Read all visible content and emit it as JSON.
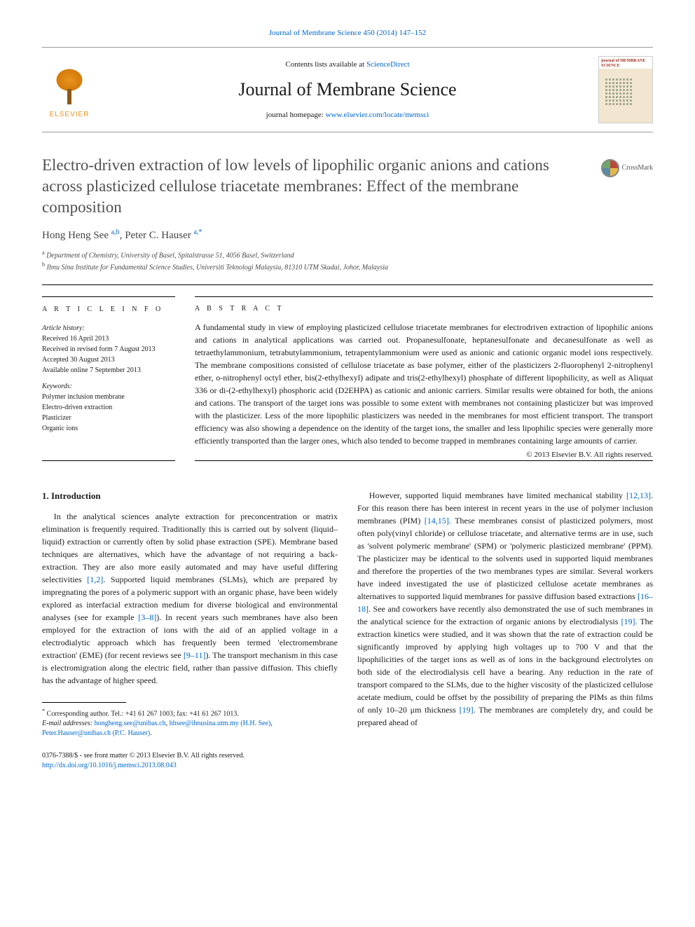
{
  "top_link": {
    "prefix": "",
    "text": "Journal of Membrane Science 450 (2014) 147–152"
  },
  "header": {
    "contents_prefix": "Contents lists available at ",
    "contents_link": "ScienceDirect",
    "journal_name": "Journal of Membrane Science",
    "homepage_prefix": "journal homepage: ",
    "homepage_link": "www.elsevier.com/locate/memsci",
    "elsevier": "ELSEVIER",
    "cover_title": "journal of MEMBRANE SCIENCE"
  },
  "crossmark_label": "CrossMark",
  "article": {
    "title": "Electro-driven extraction of low levels of lipophilic organic anions and cations across plasticized cellulose triacetate membranes: Effect of the membrane composition",
    "authors_html": "Hong Heng See",
    "author1_affils": "a,b",
    "author2": "Peter C. Hauser",
    "author2_affils": "a,",
    "corr_marker": "*",
    "affiliations": [
      "Department of Chemistry, University of Basel, Spitalstrasse 51, 4056 Basel, Switzerland",
      "Ibnu Sina Institute for Fundamental Science Studies, Universiti Teknologi Malaysia, 81310 UTM Skudai, Johor, Malaysia"
    ],
    "affil_labels": [
      "a",
      "b"
    ]
  },
  "info": {
    "heading": "a r t i c l e   i n f o",
    "history_label": "Article history:",
    "received": "Received 16 April 2013",
    "revised": "Received in revised form 7 August 2013",
    "accepted": "Accepted 30 August 2013",
    "online": "Available online 7 September 2013",
    "keywords_label": "Keywords:",
    "keywords": [
      "Polymer inclusion membrane",
      "Electro-driven extraction",
      "Plasticizer",
      "Organic ions"
    ]
  },
  "abstract": {
    "heading": "a b s t r a c t",
    "text": "A fundamental study in view of employing plasticized cellulose triacetate membranes for electrodriven extraction of lipophilic anions and cations in analytical applications was carried out. Propanesulfonate, heptanesulfonate and decanesulfonate as well as tetraethylammonium, tetrabutylammonium, tetrapentylammonium were used as anionic and cationic organic model ions respectively. The membrane compositions consisted of cellulose triacetate as base polymer, either of the plasticizers 2-fluorophenyl 2-nitrophenyl ether, o-nitrophenyl octyl ether, bis(2-ethylhexyl) adipate and tris(2-ethylhexyl) phosphate of different lipophilicity, as well as Aliquat 336 or di-(2-ethylhexyl) phosphoric acid (D2EHPA) as cationic and anionic carriers. Similar results were obtained for both, the anions and cations. The transport of the target ions was possible to some extent with membranes not containing plasticizer but was improved with the plasticizer. Less of the more lipophilic plasticizers was needed in the membranes for most efficient transport. The transport efficiency was also showing a dependence on the identity of the target ions, the smaller and less lipophilic species were generally more efficiently transported than the larger ones, which also tended to become trapped in membranes containing large amounts of carrier.",
    "copyright": "© 2013 Elsevier B.V. All rights reserved."
  },
  "sections": {
    "intro_heading": "1.  Introduction",
    "intro_p1": "In the analytical sciences analyte extraction for preconcentration or matrix elimination is frequently required. Traditionally this is carried out by solvent (liquid–liquid) extraction or currently often by solid phase extraction (SPE). Membrane based techniques are alternatives, which have the advantage of not requiring a back-extraction. They are also more easily automated and may have useful differing selectivities ",
    "cite1": "[1,2]",
    "intro_p1b": ". Supported liquid membranes (SLMs), which are prepared by impregnating the pores of a polymeric support with an organic phase, have been widely explored as interfacial extraction medium for diverse biological and environmental analyses (see for example ",
    "cite2": "[3–8]",
    "intro_p1c": "). In recent years such membranes have also been employed for the extraction of ions with the aid of an applied voltage in a electrodialytic approach which has frequently been termed 'electromembrane extraction' (EME) (for recent reviews see ",
    "cite3": "[9–11]",
    "intro_p1d": "). The transport mechanism in this case is electromigration along the electric field, rather than passive diffusion. This chiefly has the advantage of higher speed.",
    "intro_p2a": "However, supported liquid membranes have limited mechanical stability ",
    "cite4": "[12,13]",
    "intro_p2b": ". For this reason there has been interest in recent years in the use of polymer inclusion membranes (PIM) ",
    "cite5": "[14,15]",
    "intro_p2c": ". These membranes consist of plasticized polymers, most often poly(vinyl chloride) or cellulose triacetate, and alternative terms are in use, such as 'solvent polymeric membrane' (SPM) or 'polymeric plasticized membrane' (PPM). The plasticizer may be identical to the solvents used in supported liquid membranes and therefore the properties of the two membranes types are similar. Several workers have indeed investigated the use of plasticized cellulose acetate membranes as alternatives to supported liquid membranes for passive diffusion based extractions ",
    "cite6": "[16–18]",
    "intro_p2d": ". See and coworkers have recently also demonstrated the use of such membranes in the analytical science for the extraction of organic anions by electrodialysis ",
    "cite7": "[19]",
    "intro_p2e": ". The extraction kinetics were studied, and it was shown that the rate of extraction could be significantly improved by applying high voltages up to 700 V and that the lipophilicities of the target ions as well as of ions in the background electrolytes on both side of the electrodialysis cell have a bearing. Any reduction in the rate of transport compared to the SLMs, due to the higher viscosity of the plasticized cellulose acetate medium, could be offset by the possibility of preparing the PIMs as thin films of only 10–20 μm thickness ",
    "cite8": "[19]",
    "intro_p2f": ". The membranes are completely dry, and could be prepared ahead of"
  },
  "footnotes": {
    "corr": "Corresponding author. Tel.: +41 61 267 1003; fax: +41 61 267 1013.",
    "email_label": "E-mail addresses: ",
    "email1": "hongheng.see@unibas.ch",
    "email1_alt": "hhsee@ibnusina.utm.my (H.H. See)",
    "email2": "Peter.Hauser@unibas.ch (P.C. Hauser)"
  },
  "footer": {
    "line1": "0376-7388/$ - see front matter © 2013 Elsevier B.V. All rights reserved.",
    "doi": "http://dx.doi.org/10.1016/j.memsci.2013.08.043"
  },
  "colors": {
    "link": "#0066cc",
    "text": "#1a1a1a",
    "title_gray": "#505050",
    "elsevier_orange": "#e8941f"
  },
  "typography": {
    "body_fontsize_pt": 9,
    "title_fontsize_pt": 17,
    "journal_fontsize_pt": 20,
    "abstract_fontsize_pt": 9,
    "footnote_fontsize_pt": 7.5
  }
}
